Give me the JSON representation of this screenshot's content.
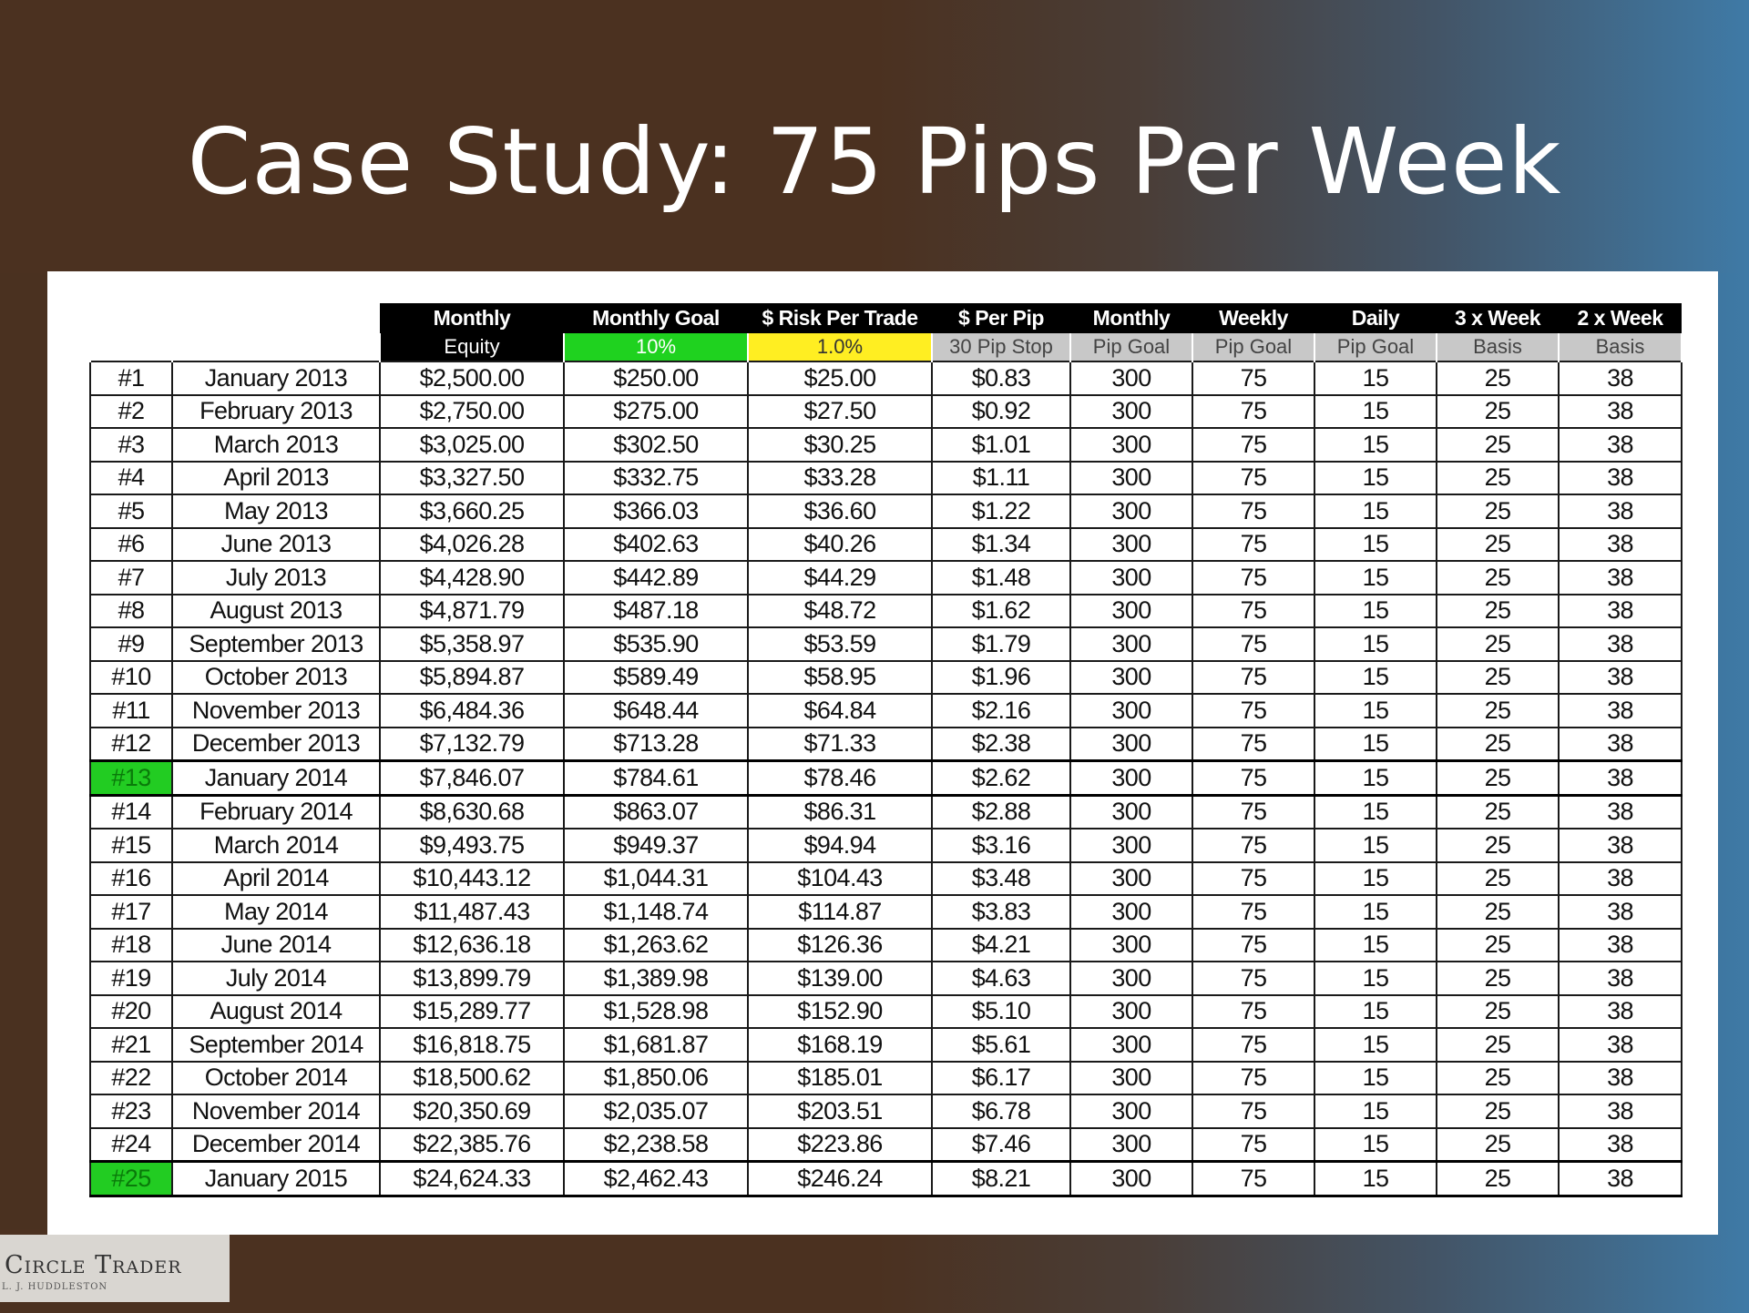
{
  "title": "Case Study: 75 Pips Per Week",
  "logo": {
    "line1": "Circle Trader",
    "line2": "L. J. HUDDLESTON"
  },
  "columns": [
    {
      "top": "Monthly",
      "sub": "Equity"
    },
    {
      "top": "Monthly Goal",
      "sub": "10%"
    },
    {
      "top": "$ Risk Per Trade",
      "sub": "1.0%"
    },
    {
      "top": "$ Per Pip",
      "sub": "30 Pip Stop"
    },
    {
      "top": "Monthly",
      "sub": "Pip Goal"
    },
    {
      "top": "Weekly",
      "sub": "Pip Goal"
    },
    {
      "top": "Daily",
      "sub": "Pip Goal"
    },
    {
      "top": "3 x Week",
      "sub": "Basis"
    },
    {
      "top": "2 x Week",
      "sub": "Basis"
    }
  ],
  "rows": [
    [
      "#1",
      "January 2013",
      "$2,500.00",
      "$250.00",
      "$25.00",
      "$0.83",
      "300",
      "75",
      "15",
      "25",
      "38"
    ],
    [
      "#2",
      "February 2013",
      "$2,750.00",
      "$275.00",
      "$27.50",
      "$0.92",
      "300",
      "75",
      "15",
      "25",
      "38"
    ],
    [
      "#3",
      "March 2013",
      "$3,025.00",
      "$302.50",
      "$30.25",
      "$1.01",
      "300",
      "75",
      "15",
      "25",
      "38"
    ],
    [
      "#4",
      "April 2013",
      "$3,327.50",
      "$332.75",
      "$33.28",
      "$1.11",
      "300",
      "75",
      "15",
      "25",
      "38"
    ],
    [
      "#5",
      "May 2013",
      "$3,660.25",
      "$366.03",
      "$36.60",
      "$1.22",
      "300",
      "75",
      "15",
      "25",
      "38"
    ],
    [
      "#6",
      "June 2013",
      "$4,026.28",
      "$402.63",
      "$40.26",
      "$1.34",
      "300",
      "75",
      "15",
      "25",
      "38"
    ],
    [
      "#7",
      "July 2013",
      "$4,428.90",
      "$442.89",
      "$44.29",
      "$1.48",
      "300",
      "75",
      "15",
      "25",
      "38"
    ],
    [
      "#8",
      "August 2013",
      "$4,871.79",
      "$487.18",
      "$48.72",
      "$1.62",
      "300",
      "75",
      "15",
      "25",
      "38"
    ],
    [
      "#9",
      "September 2013",
      "$5,358.97",
      "$535.90",
      "$53.59",
      "$1.79",
      "300",
      "75",
      "15",
      "25",
      "38"
    ],
    [
      "#10",
      "October 2013",
      "$5,894.87",
      "$589.49",
      "$58.95",
      "$1.96",
      "300",
      "75",
      "15",
      "25",
      "38"
    ],
    [
      "#11",
      "November 2013",
      "$6,484.36",
      "$648.44",
      "$64.84",
      "$2.16",
      "300",
      "75",
      "15",
      "25",
      "38"
    ],
    [
      "#12",
      "December 2013",
      "$7,132.79",
      "$713.28",
      "$71.33",
      "$2.38",
      "300",
      "75",
      "15",
      "25",
      "38"
    ],
    [
      "#13",
      "January 2014",
      "$7,846.07",
      "$784.61",
      "$78.46",
      "$2.62",
      "300",
      "75",
      "15",
      "25",
      "38"
    ],
    [
      "#14",
      "February 2014",
      "$8,630.68",
      "$863.07",
      "$86.31",
      "$2.88",
      "300",
      "75",
      "15",
      "25",
      "38"
    ],
    [
      "#15",
      "March 2014",
      "$9,493.75",
      "$949.37",
      "$94.94",
      "$3.16",
      "300",
      "75",
      "15",
      "25",
      "38"
    ],
    [
      "#16",
      "April 2014",
      "$10,443.12",
      "$1,044.31",
      "$104.43",
      "$3.48",
      "300",
      "75",
      "15",
      "25",
      "38"
    ],
    [
      "#17",
      "May 2014",
      "$11,487.43",
      "$1,148.74",
      "$114.87",
      "$3.83",
      "300",
      "75",
      "15",
      "25",
      "38"
    ],
    [
      "#18",
      "June 2014",
      "$12,636.18",
      "$1,263.62",
      "$126.36",
      "$4.21",
      "300",
      "75",
      "15",
      "25",
      "38"
    ],
    [
      "#19",
      "July 2014",
      "$13,899.79",
      "$1,389.98",
      "$139.00",
      "$4.63",
      "300",
      "75",
      "15",
      "25",
      "38"
    ],
    [
      "#20",
      "August 2014",
      "$15,289.77",
      "$1,528.98",
      "$152.90",
      "$5.10",
      "300",
      "75",
      "15",
      "25",
      "38"
    ],
    [
      "#21",
      "September 2014",
      "$16,818.75",
      "$1,681.87",
      "$168.19",
      "$5.61",
      "300",
      "75",
      "15",
      "25",
      "38"
    ],
    [
      "#22",
      "October 2014",
      "$18,500.62",
      "$1,850.06",
      "$185.01",
      "$6.17",
      "300",
      "75",
      "15",
      "25",
      "38"
    ],
    [
      "#23",
      "November 2014",
      "$20,350.69",
      "$2,035.07",
      "$203.51",
      "$6.78",
      "300",
      "75",
      "15",
      "25",
      "38"
    ],
    [
      "#24",
      "December 2014",
      "$22,385.76",
      "$2,238.58",
      "$223.86",
      "$7.46",
      "300",
      "75",
      "15",
      "25",
      "38"
    ],
    [
      "#25",
      "January 2015",
      "$24,624.33",
      "$2,462.43",
      "$246.24",
      "$8.21",
      "300",
      "75",
      "15",
      "25",
      "38"
    ]
  ],
  "highlighted_rows": [
    "#13",
    "#25"
  ],
  "colors": {
    "goal_highlight": "#1fd21f",
    "risk_highlight": "#ffee22",
    "row_highlight": "#22cc22"
  }
}
